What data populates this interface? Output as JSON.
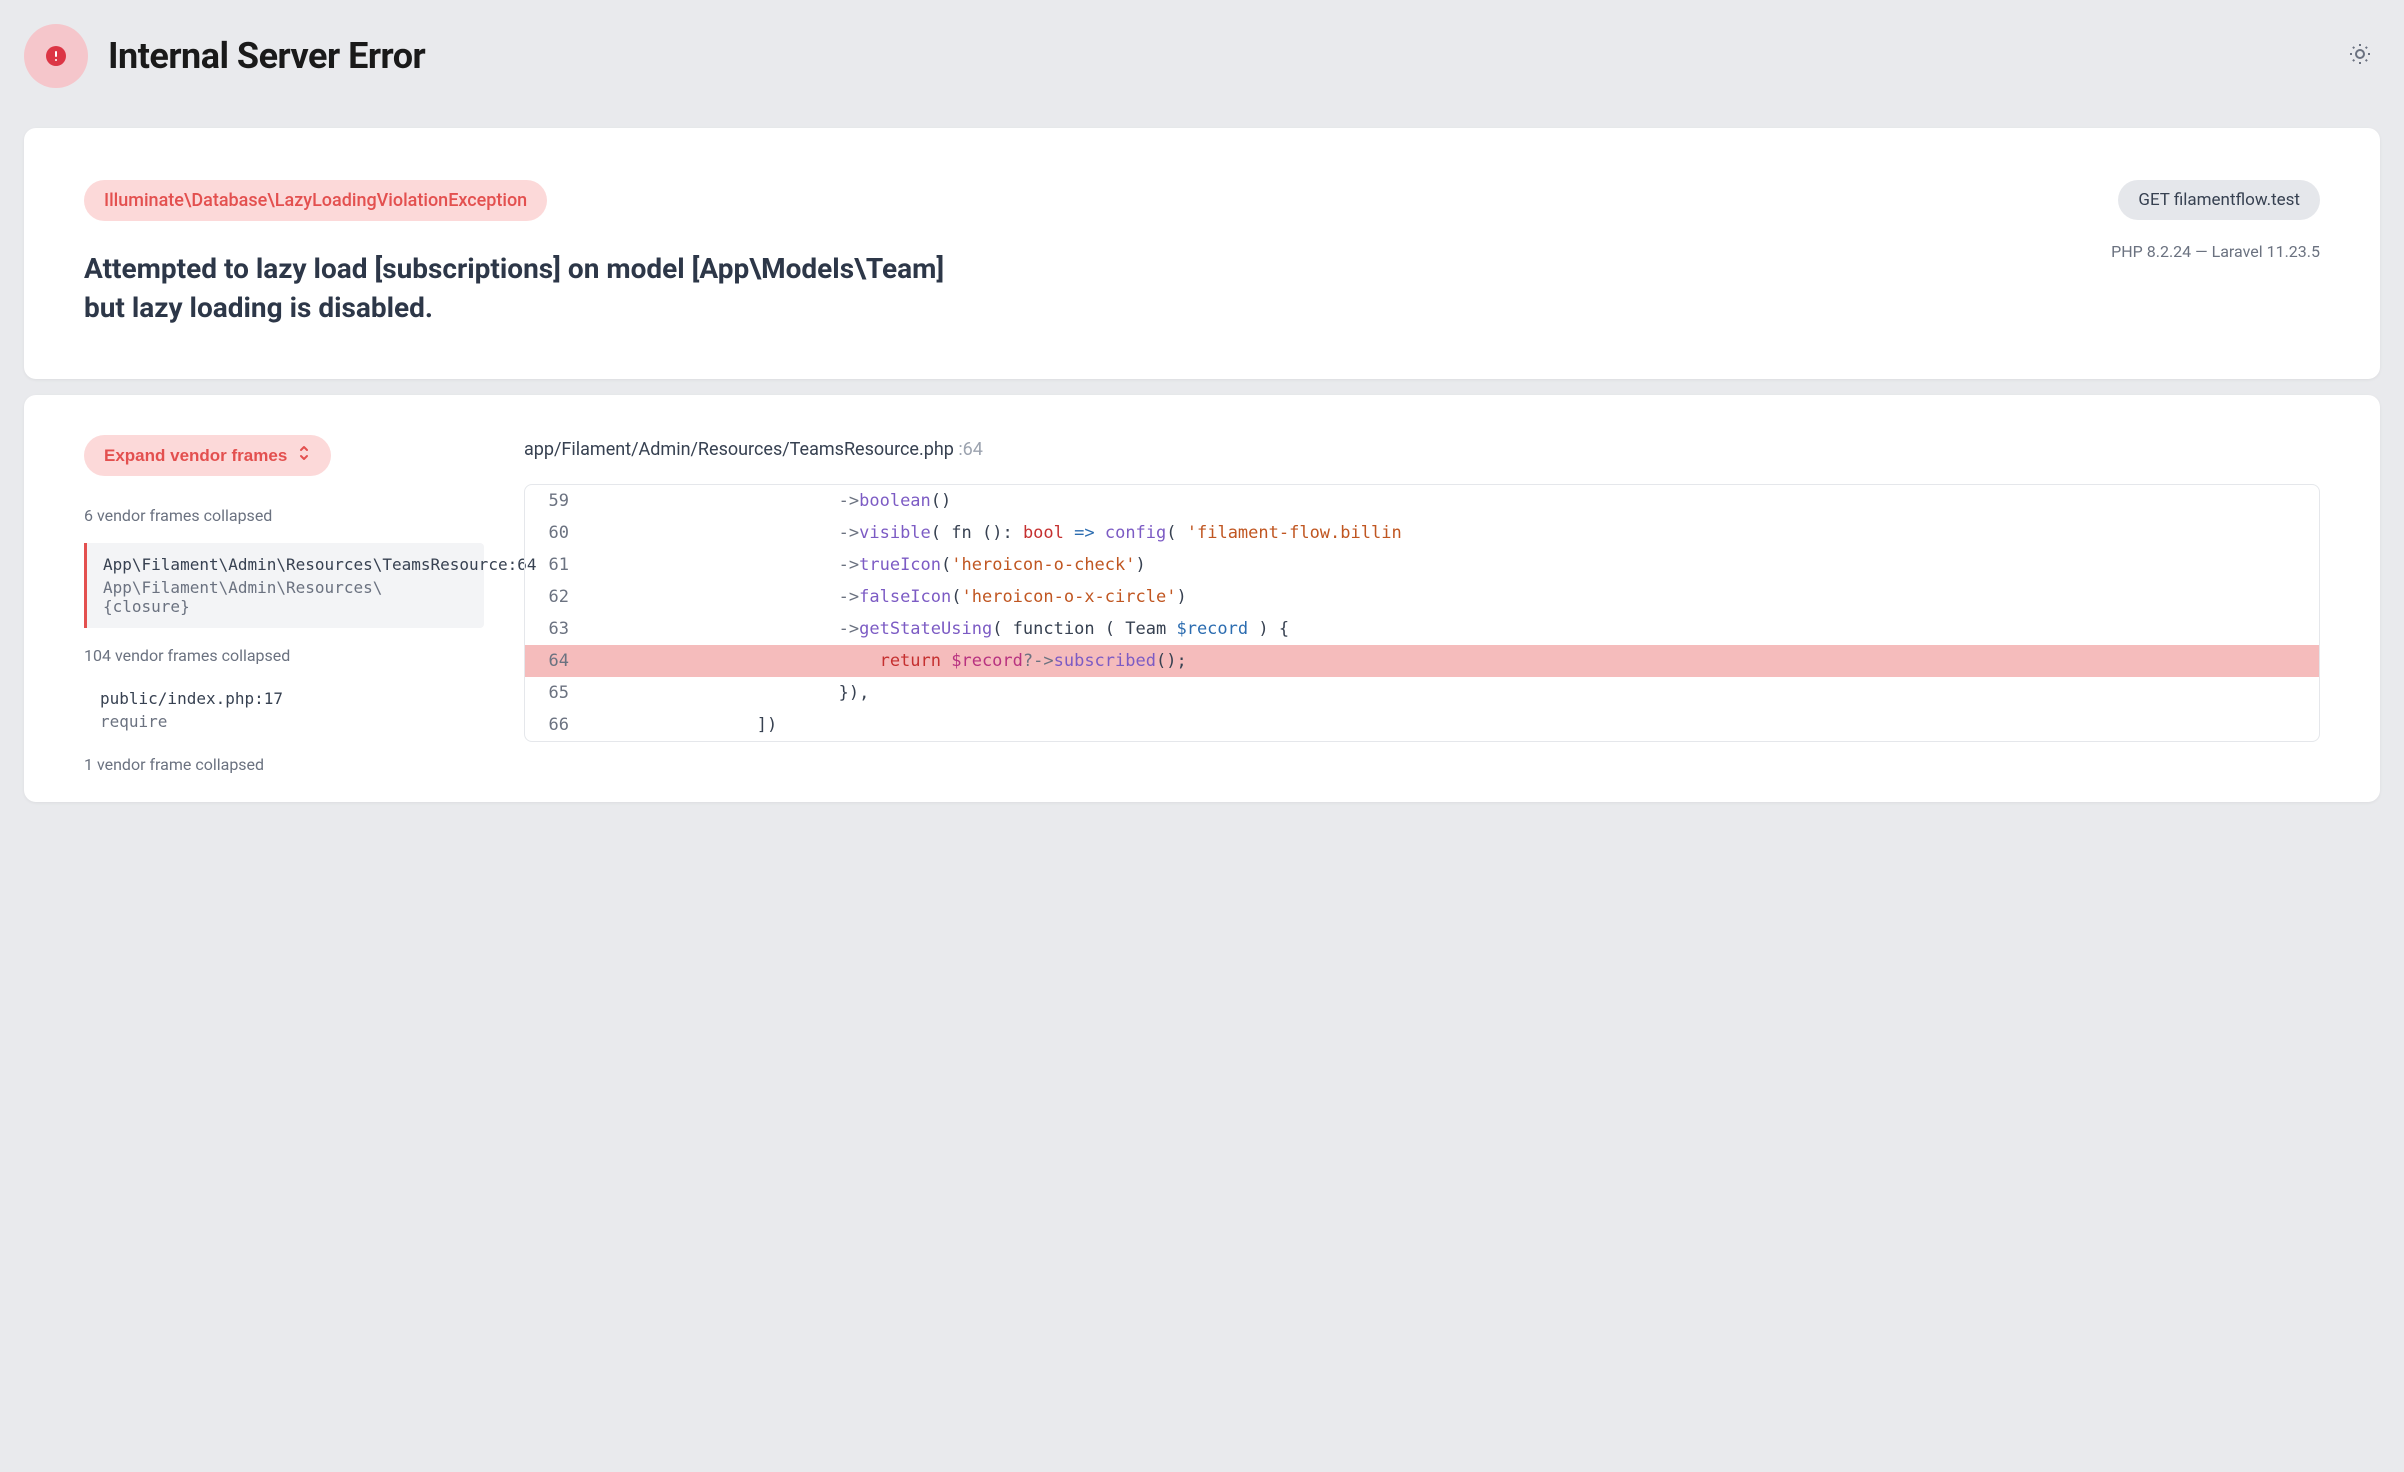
{
  "colors": {
    "page_bg": "#e9eaed",
    "card_bg": "#ffffff",
    "error_badge_bg": "#f5c6cb",
    "error_badge_icon": "#dc3545",
    "pill_bg": "#fcd9d9",
    "pill_text": "#e3504f",
    "request_badge_bg": "#e5e7eb",
    "muted_text": "#6b7280",
    "heading_text": "#1a1a1a",
    "message_text": "#2d3748",
    "frame_active_bg": "#f3f4f6",
    "frame_active_border": "#e3504f",
    "code_border": "#e5e7eb",
    "highlight_bg": "#f5bcbc",
    "tok_method": "#7c5bc4",
    "tok_string": "#c05621",
    "tok_keyword": "#c53030",
    "tok_type": "#2b6cb0",
    "tok_var": "#b83280"
  },
  "header": {
    "title": "Internal Server Error"
  },
  "exception": {
    "class": "Illuminate\\Database\\LazyLoadingViolationException",
    "message": "Attempted to lazy load [subscriptions] on model [App\\Models\\Team] but lazy loading is disabled.",
    "request_method": "GET",
    "request_host": "filamentflow.test",
    "php_version": "PHP 8.2.24",
    "framework_version": "Laravel 11.23.5"
  },
  "trace": {
    "expand_label": "Expand vendor frames",
    "collapsed_top": "6 vendor frames collapsed",
    "active_frame": {
      "location": "App\\Filament\\Admin\\Resources\\TeamsResource",
      "line": "64",
      "sub": "App\\Filament\\Admin\\Resources\\{closure}"
    },
    "collapsed_mid": "104 vendor frames collapsed",
    "entry_frame": {
      "location": "public/index.php",
      "line": "17",
      "sub": "require"
    },
    "collapsed_bottom": "1 vendor frame collapsed",
    "file_path": "app/Filament/Admin/Resources/TeamsResource.php",
    "file_line": "64",
    "code": {
      "highlighted_line": 64,
      "lines": [
        {
          "n": 59,
          "tokens": [
            {
              "t": "                        ",
              "c": ""
            },
            {
              "t": "->",
              "c": "tok-arrow"
            },
            {
              "t": "boolean",
              "c": "tok-method"
            },
            {
              "t": "()",
              "c": "tok-paren"
            }
          ]
        },
        {
          "n": 60,
          "tokens": [
            {
              "t": "                        ",
              "c": ""
            },
            {
              "t": "->",
              "c": "tok-arrow"
            },
            {
              "t": "visible",
              "c": "tok-method"
            },
            {
              "t": "( ",
              "c": "tok-paren"
            },
            {
              "t": "fn ",
              "c": ""
            },
            {
              "t": "(): ",
              "c": "tok-paren"
            },
            {
              "t": "bool",
              "c": "tok-keyword"
            },
            {
              "t": " => ",
              "c": "tok-type"
            },
            {
              "t": "config",
              "c": "tok-method"
            },
            {
              "t": "( ",
              "c": "tok-paren"
            },
            {
              "t": "'filament-flow.billin",
              "c": "tok-string"
            }
          ]
        },
        {
          "n": 61,
          "tokens": [
            {
              "t": "                        ",
              "c": ""
            },
            {
              "t": "->",
              "c": "tok-arrow"
            },
            {
              "t": "trueIcon",
              "c": "tok-method"
            },
            {
              "t": "(",
              "c": "tok-paren"
            },
            {
              "t": "'heroicon-o-check'",
              "c": "tok-string"
            },
            {
              "t": ")",
              "c": "tok-paren"
            }
          ]
        },
        {
          "n": 62,
          "tokens": [
            {
              "t": "                        ",
              "c": ""
            },
            {
              "t": "->",
              "c": "tok-arrow"
            },
            {
              "t": "falseIcon",
              "c": "tok-method"
            },
            {
              "t": "(",
              "c": "tok-paren"
            },
            {
              "t": "'heroicon-o-x-circle'",
              "c": "tok-string"
            },
            {
              "t": ")",
              "c": "tok-paren"
            }
          ]
        },
        {
          "n": 63,
          "tokens": [
            {
              "t": "                        ",
              "c": ""
            },
            {
              "t": "->",
              "c": "tok-arrow"
            },
            {
              "t": "getStateUsing",
              "c": "tok-method"
            },
            {
              "t": "( ",
              "c": "tok-paren"
            },
            {
              "t": "function ",
              "c": ""
            },
            {
              "t": "( ",
              "c": "tok-paren"
            },
            {
              "t": "Team ",
              "c": ""
            },
            {
              "t": "$record",
              "c": "tok-type"
            },
            {
              "t": " ) {",
              "c": "tok-paren"
            }
          ]
        },
        {
          "n": 64,
          "tokens": [
            {
              "t": "                            ",
              "c": ""
            },
            {
              "t": "return ",
              "c": "tok-keyword"
            },
            {
              "t": "$record",
              "c": "tok-var"
            },
            {
              "t": "?->",
              "c": "tok-arrow"
            },
            {
              "t": "subscribed",
              "c": "tok-method"
            },
            {
              "t": "();",
              "c": "tok-paren"
            }
          ]
        },
        {
          "n": 65,
          "tokens": [
            {
              "t": "                        }),",
              "c": "tok-paren"
            }
          ]
        },
        {
          "n": 66,
          "tokens": [
            {
              "t": "                ])",
              "c": "tok-paren"
            }
          ]
        }
      ]
    }
  }
}
